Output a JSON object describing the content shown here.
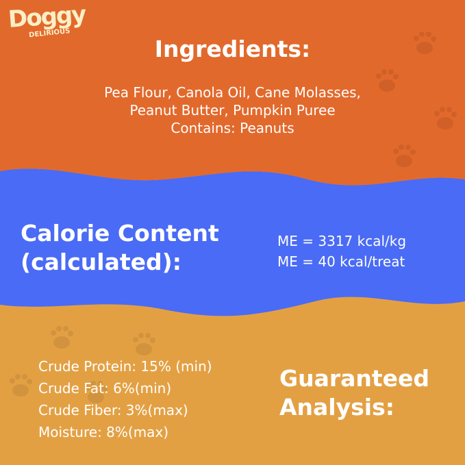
{
  "logo": {
    "line1": "Doggy",
    "line2": "DELIRIOUS"
  },
  "ingredients": {
    "title": "Ingredients:",
    "lines": [
      "Pea Flour, Canola Oil, Cane Molasses,",
      "Peanut Butter, Pumpkin Puree",
      "Contains: Peanuts"
    ]
  },
  "calories": {
    "title_line1": "Calorie Content",
    "title_line2": "(calculated):",
    "values": [
      "ME = 3317 kcal/kg",
      "ME = 40 kcal/treat"
    ]
  },
  "analysis": {
    "title_line1": "Guaranteed",
    "title_line2": "Analysis:",
    "items": [
      "Crude Protein: 15% (min)",
      "Crude Fat: 6%(min)",
      "Crude Fiber: 3%(max)",
      "Moisture: 8%(max)"
    ]
  },
  "colors": {
    "orange": "#E2692C",
    "blue": "#4A6BF5",
    "tan": "#E3A043",
    "logo": "#FBEFC6"
  }
}
